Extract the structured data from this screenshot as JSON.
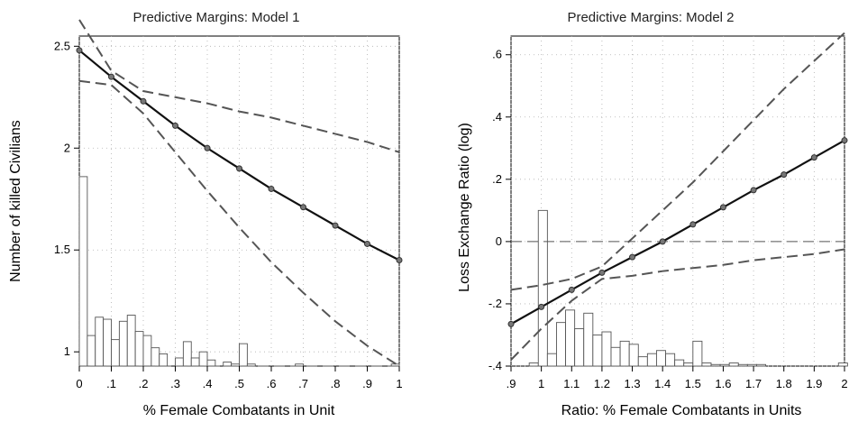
{
  "chart_data": [
    {
      "type": "line",
      "title": "Predictive Margins: Model 1",
      "xlabel": "% Female Combatants in Unit",
      "ylabel": "Number of killed Civilians",
      "xlim": [
        0,
        1
      ],
      "ylim": [
        0.93,
        2.55
      ],
      "grid": true,
      "xticks": [
        0,
        0.1,
        0.2,
        0.3,
        0.4,
        0.5,
        0.6,
        0.7,
        0.8,
        0.9,
        1
      ],
      "xtick_labels": [
        "0",
        ".1",
        ".2",
        ".3",
        ".4",
        ".5",
        ".6",
        ".7",
        ".8",
        ".9",
        "1"
      ],
      "yticks": [
        1,
        1.5,
        2,
        2.5
      ],
      "ytick_labels": [
        "1",
        "1.5",
        "2",
        "2.5"
      ],
      "series": [
        {
          "role": "estimate",
          "x": [
            0,
            0.1,
            0.2,
            0.3,
            0.4,
            0.5,
            0.6,
            0.7,
            0.8,
            0.9,
            1
          ],
          "values": [
            2.48,
            2.35,
            2.23,
            2.11,
            2.0,
            1.9,
            1.8,
            1.71,
            1.62,
            1.53,
            1.45
          ]
        },
        {
          "role": "upper-ci",
          "x": [
            0,
            0.1,
            0.2,
            0.3,
            0.4,
            0.5,
            0.6,
            0.7,
            0.8,
            0.9,
            1
          ],
          "values": [
            2.63,
            2.38,
            2.28,
            2.25,
            2.22,
            2.18,
            2.15,
            2.11,
            2.07,
            2.03,
            1.98
          ]
        },
        {
          "role": "lower-ci",
          "x": [
            0,
            0.1,
            0.2,
            0.3,
            0.4,
            0.5,
            0.6,
            0.7,
            0.8,
            0.9,
            1
          ],
          "values": [
            2.33,
            2.31,
            2.17,
            1.98,
            1.79,
            1.61,
            1.44,
            1.29,
            1.15,
            1.03,
            0.93
          ]
        }
      ],
      "histogram": {
        "baseline": 0.93,
        "bin_width": 0.025,
        "bins_start": [
          0,
          0.025,
          0.05,
          0.075,
          0.1,
          0.125,
          0.15,
          0.175,
          0.2,
          0.225,
          0.25,
          0.3,
          0.325,
          0.35,
          0.375,
          0.4,
          0.45,
          0.475,
          0.5,
          0.525,
          0.675,
          0.975
        ],
        "tops": [
          1.86,
          1.08,
          1.17,
          1.16,
          1.06,
          1.15,
          1.18,
          1.1,
          1.08,
          1.02,
          0.99,
          0.97,
          1.05,
          0.97,
          1.0,
          0.96,
          0.95,
          0.94,
          1.04,
          0.94,
          0.94,
          0.94
        ]
      },
      "reference_line": 0.93
    },
    {
      "type": "line",
      "title": "Predictive Margins: Model 2",
      "xlabel": "Ratio: % Female Combatants in Units",
      "ylabel": "Loss Exchange Ratio (log)",
      "xlim": [
        0.9,
        2
      ],
      "ylim": [
        -0.4,
        0.66
      ],
      "grid": true,
      "xticks": [
        0.9,
        1,
        1.1,
        1.2,
        1.3,
        1.4,
        1.5,
        1.6,
        1.7,
        1.8,
        1.9,
        2
      ],
      "xtick_labels": [
        ".9",
        "1",
        "1.1",
        "1.2",
        "1.3",
        "1.4",
        "1.5",
        "1.6",
        "1.7",
        "1.8",
        "1.9",
        "2"
      ],
      "yticks": [
        -0.4,
        -0.2,
        0,
        0.2,
        0.4,
        0.6
      ],
      "ytick_labels": [
        "-.4",
        "-.2",
        "0",
        ".2",
        ".4",
        ".6"
      ],
      "series": [
        {
          "role": "estimate",
          "x": [
            0.9,
            1.0,
            1.1,
            1.2,
            1.3,
            1.4,
            1.5,
            1.6,
            1.7,
            1.8,
            1.9,
            2.0
          ],
          "values": [
            -0.265,
            -0.21,
            -0.155,
            -0.1,
            -0.05,
            0.0,
            0.055,
            0.11,
            0.165,
            0.215,
            0.27,
            0.325
          ]
        },
        {
          "role": "upper-ci",
          "x": [
            0.9,
            1.0,
            1.1,
            1.2,
            1.3,
            1.4,
            1.5,
            1.6,
            1.7,
            1.8,
            1.9,
            2.0
          ],
          "values": [
            -0.155,
            -0.14,
            -0.12,
            -0.08,
            0.01,
            0.1,
            0.19,
            0.29,
            0.39,
            0.49,
            0.58,
            0.67
          ]
        },
        {
          "role": "lower-ci",
          "x": [
            0.9,
            1.0,
            1.1,
            1.2,
            1.3,
            1.4,
            1.5,
            1.6,
            1.7,
            1.8,
            1.9,
            2.0
          ],
          "values": [
            -0.38,
            -0.28,
            -0.19,
            -0.12,
            -0.11,
            -0.095,
            -0.085,
            -0.075,
            -0.06,
            -0.05,
            -0.04,
            -0.025
          ]
        }
      ],
      "histogram": {
        "baseline": -0.4,
        "bin_width": 0.03,
        "bins_start": [
          0.96,
          0.99,
          1.02,
          1.05,
          1.08,
          1.11,
          1.14,
          1.17,
          1.2,
          1.23,
          1.26,
          1.29,
          1.32,
          1.35,
          1.38,
          1.41,
          1.44,
          1.47,
          1.5,
          1.53,
          1.56,
          1.59,
          1.62,
          1.65,
          1.68,
          1.71,
          1.98
        ],
        "tops": [
          -0.39,
          0.1,
          -0.36,
          -0.26,
          -0.22,
          -0.28,
          -0.23,
          -0.3,
          -0.29,
          -0.34,
          -0.32,
          -0.33,
          -0.37,
          -0.36,
          -0.35,
          -0.36,
          -0.38,
          -0.39,
          -0.32,
          -0.39,
          -0.395,
          -0.395,
          -0.39,
          -0.395,
          -0.395,
          -0.395,
          -0.39
        ]
      },
      "reference_line": 0
    }
  ]
}
